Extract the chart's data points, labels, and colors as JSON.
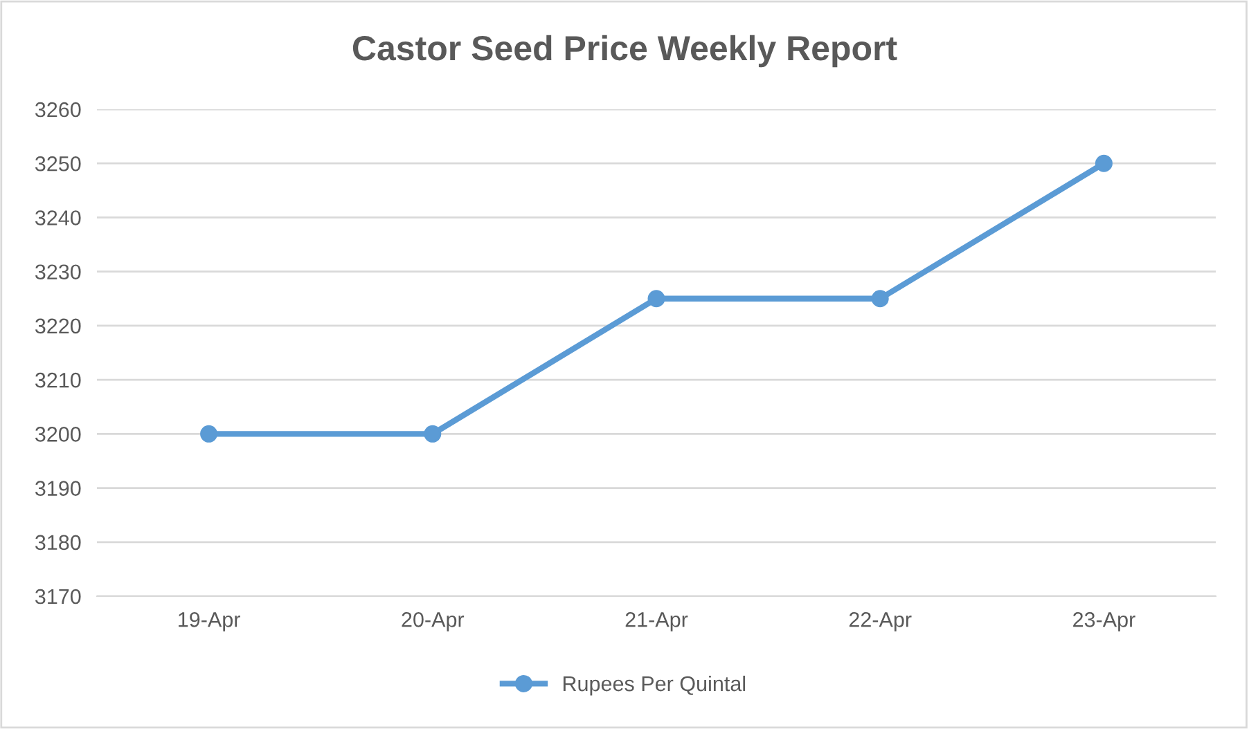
{
  "chart_data": {
    "type": "line",
    "title": "Castor Seed Price Weekly Report",
    "categories": [
      "19-Apr",
      "20-Apr",
      "21-Apr",
      "22-Apr",
      "23-Apr"
    ],
    "series": [
      {
        "name": "Rupees Per Quintal",
        "color": "#5b9bd5",
        "values": [
          3200,
          3200,
          3225,
          3225,
          3250
        ]
      }
    ],
    "ylim": [
      3170,
      3260
    ],
    "yticks": [
      3170,
      3180,
      3190,
      3200,
      3210,
      3220,
      3230,
      3240,
      3250,
      3260
    ],
    "grid": "y",
    "legend": "bottom",
    "marker": "circle",
    "line_style": "solid"
  }
}
